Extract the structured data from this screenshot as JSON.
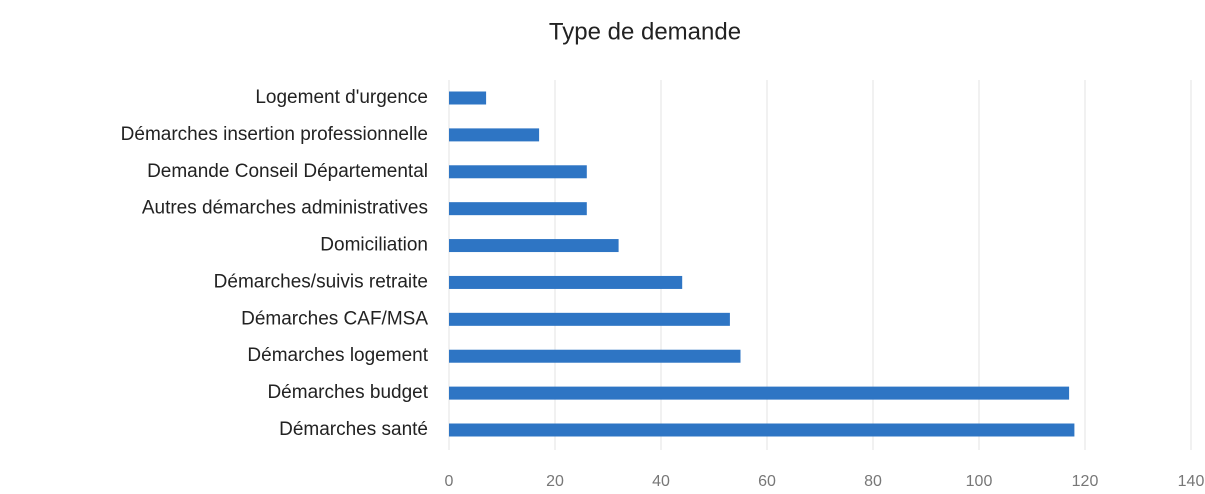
{
  "chart_data": {
    "type": "barh",
    "title": "Type de demande",
    "categories": [
      "Logement d'urgence",
      "Démarches insertion professionnelle",
      "Demande Conseil Départemental",
      "Autres démarches administratives",
      "Domiciliation",
      "Démarches/suivis retraite",
      "Démarches CAF/MSA",
      "Démarches logement",
      "Démarches budget",
      "Démarches santé"
    ],
    "values": [
      7,
      17,
      26,
      26,
      32,
      44,
      53,
      55,
      117,
      118
    ],
    "color": "#2e75c4",
    "xlim": [
      0,
      140
    ],
    "xticks": [
      0,
      20,
      40,
      60,
      80,
      100,
      120,
      140
    ],
    "grid": true
  }
}
